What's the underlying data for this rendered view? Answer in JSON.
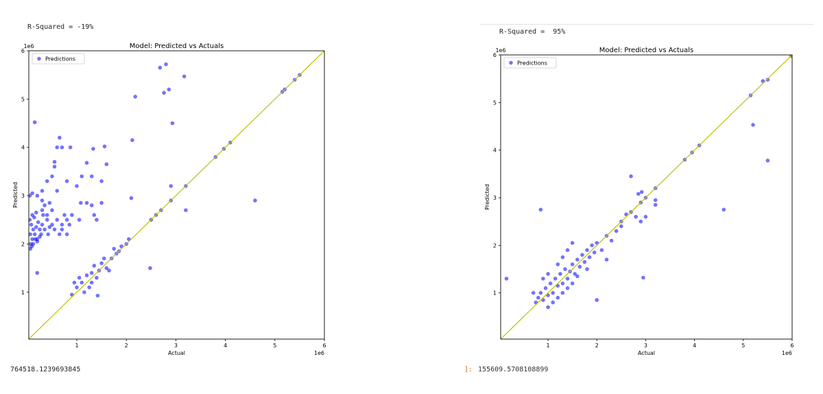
{
  "cells": [
    {
      "r_squared": "R-Squared = -19%",
      "output_value": "764518.1239693845",
      "prompt": ""
    },
    {
      "r_squared": "R-Squared =  95%",
      "output_value": "155609.5708108899",
      "prompt": "]:"
    }
  ],
  "colors": {
    "points": "#0000ff",
    "identity_line": "#bfbf00",
    "axes": "#000000"
  },
  "chart_data": [
    {
      "type": "scatter",
      "title": "Model: Predicted vs Actuals",
      "xlabel": "Actual",
      "ylabel": "Predicted",
      "x_offset_label": "1e6",
      "y_offset_label": "1e6",
      "xlim": [
        0.03,
        6.0
      ],
      "ylim": [
        0.03,
        6.0
      ],
      "xticks": [
        "1",
        "2",
        "3",
        "4",
        "5",
        "6"
      ],
      "yticks": [
        "1",
        "2",
        "3",
        "4",
        "5",
        "6"
      ],
      "legend": {
        "label": "Predictions",
        "placement": "top-left"
      },
      "grid": false,
      "reference_line": "y = x",
      "series": [
        {
          "name": "Predictions",
          "points": [
            [
              0.06,
              2.2
            ],
            [
              0.08,
              2.4
            ],
            [
              0.1,
              2.1
            ],
            [
              0.12,
              2.3
            ],
            [
              0.05,
              2.5
            ],
            [
              0.15,
              2.2
            ],
            [
              0.18,
              2.35
            ],
            [
              0.2,
              2.1
            ],
            [
              0.22,
              2.45
            ],
            [
              0.25,
              2.3
            ],
            [
              0.28,
              2.2
            ],
            [
              0.3,
              2.4
            ],
            [
              0.32,
              2.6
            ],
            [
              0.35,
              2.3
            ],
            [
              0.4,
              2.5
            ],
            [
              0.42,
              2.2
            ],
            [
              0.45,
              2.35
            ],
            [
              0.5,
              2.4
            ],
            [
              0.55,
              2.3
            ],
            [
              0.6,
              2.5
            ],
            [
              0.65,
              2.2
            ],
            [
              0.7,
              2.4
            ],
            [
              0.75,
              2.6
            ],
            [
              0.8,
              2.5
            ],
            [
              0.85,
              2.4
            ],
            [
              0.07,
              2.0
            ],
            [
              0.09,
              1.95
            ],
            [
              0.12,
              2.0
            ],
            [
              0.16,
              2.1
            ],
            [
              0.2,
              2.05
            ],
            [
              0.25,
              2.15
            ],
            [
              0.06,
              1.9
            ],
            [
              0.1,
              2.6
            ],
            [
              0.14,
              2.55
            ],
            [
              0.18,
              2.65
            ],
            [
              0.3,
              2.7
            ],
            [
              0.35,
              2.8
            ],
            [
              0.4,
              2.6
            ],
            [
              0.5,
              2.7
            ],
            [
              0.9,
              2.6
            ],
            [
              0.05,
              3.0
            ],
            [
              0.2,
              3.0
            ],
            [
              0.3,
              3.1
            ],
            [
              0.4,
              3.3
            ],
            [
              0.5,
              3.4
            ],
            [
              0.6,
              3.1
            ],
            [
              0.8,
              3.3
            ],
            [
              1.0,
              3.2
            ],
            [
              1.1,
              3.4
            ],
            [
              1.3,
              3.4
            ],
            [
              1.5,
              3.3
            ],
            [
              0.55,
              3.6
            ],
            [
              0.55,
              3.7
            ],
            [
              0.6,
              4.0
            ],
            [
              0.7,
              4.0
            ],
            [
              0.65,
              4.2
            ],
            [
              0.87,
              4.0
            ],
            [
              1.33,
              3.97
            ],
            [
              1.56,
              4.02
            ],
            [
              1.2,
              3.68
            ],
            [
              1.6,
              3.65
            ],
            [
              0.3,
              2.9
            ],
            [
              0.45,
              2.85
            ],
            [
              1.2,
              2.85
            ],
            [
              0.1,
              3.05
            ],
            [
              0.15,
              4.52
            ],
            [
              0.2,
              1.4
            ],
            [
              1.08,
              2.85
            ],
            [
              1.4,
              2.5
            ],
            [
              1.35,
              2.6
            ],
            [
              1.05,
              2.5
            ],
            [
              1.3,
              2.8
            ],
            [
              1.5,
              2.85
            ],
            [
              0.7,
              2.3
            ],
            [
              0.8,
              2.2
            ],
            [
              2.18,
              5.05
            ],
            [
              2.68,
              5.65
            ],
            [
              2.8,
              5.72
            ],
            [
              2.76,
              5.13
            ],
            [
              2.86,
              5.2
            ],
            [
              3.17,
              5.47
            ],
            [
              2.93,
              4.5
            ],
            [
              2.12,
              4.15
            ],
            [
              2.9,
              3.2
            ],
            [
              2.1,
              2.95
            ],
            [
              3.2,
              2.7
            ],
            [
              4.6,
              2.9
            ],
            [
              2.48,
              1.5
            ],
            [
              1.42,
              0.93
            ],
            [
              1.7,
              1.7
            ],
            [
              1.8,
              1.8
            ],
            [
              1.9,
              1.95
            ],
            [
              2.0,
              2.0
            ],
            [
              2.5,
              2.5
            ],
            [
              2.6,
              2.6
            ],
            [
              2.7,
              2.7
            ],
            [
              2.9,
              2.9
            ],
            [
              3.2,
              3.2
            ],
            [
              3.8,
              3.8
            ],
            [
              3.97,
              3.97
            ],
            [
              4.1,
              4.1
            ],
            [
              5.15,
              5.15
            ],
            [
              5.2,
              5.2
            ],
            [
              5.4,
              5.4
            ],
            [
              5.5,
              5.5
            ],
            [
              1.5,
              1.6
            ],
            [
              1.6,
              1.5
            ],
            [
              1.3,
              1.4
            ],
            [
              1.4,
              1.3
            ],
            [
              1.2,
              1.35
            ],
            [
              1.1,
              1.2
            ],
            [
              1.0,
              1.1
            ],
            [
              0.9,
              0.95
            ],
            [
              1.25,
              1.1
            ],
            [
              1.45,
              1.45
            ],
            [
              1.55,
              1.7
            ],
            [
              1.75,
              1.9
            ],
            [
              1.15,
              1.0
            ],
            [
              1.3,
              1.2
            ],
            [
              0.95,
              1.2
            ],
            [
              1.05,
              1.3
            ],
            [
              1.85,
              1.85
            ],
            [
              2.05,
              2.1
            ],
            [
              1.65,
              1.45
            ],
            [
              1.35,
              1.55
            ]
          ]
        }
      ]
    },
    {
      "type": "scatter",
      "title": "Model: Predicted vs Actuals",
      "xlabel": "Actual",
      "ylabel": "Predicted",
      "x_offset_label": "1e6",
      "y_offset_label": "1e6",
      "xlim": [
        0.03,
        6.0
      ],
      "ylim": [
        0.03,
        6.0
      ],
      "xticks": [
        "1",
        "2",
        "3",
        "4",
        "5",
        "6"
      ],
      "yticks": [
        "1",
        "2",
        "3",
        "4",
        "5",
        "6"
      ],
      "legend": {
        "label": "Predictions",
        "placement": "top-left"
      },
      "grid": false,
      "reference_line": "y = x",
      "series": [
        {
          "name": "Predictions",
          "points": [
            [
              0.8,
              0.9
            ],
            [
              0.85,
              1.0
            ],
            [
              0.9,
              0.85
            ],
            [
              0.95,
              1.1
            ],
            [
              1.0,
              0.95
            ],
            [
              1.05,
              1.2
            ],
            [
              1.1,
              1.0
            ],
            [
              1.15,
              1.3
            ],
            [
              1.2,
              1.15
            ],
            [
              1.25,
              1.4
            ],
            [
              1.3,
              1.2
            ],
            [
              1.35,
              1.5
            ],
            [
              1.4,
              1.3
            ],
            [
              1.45,
              1.45
            ],
            [
              1.5,
              1.6
            ],
            [
              1.55,
              1.4
            ],
            [
              1.6,
              1.7
            ],
            [
              1.65,
              1.55
            ],
            [
              1.7,
              1.8
            ],
            [
              1.75,
              1.65
            ],
            [
              1.8,
              1.9
            ],
            [
              1.85,
              1.75
            ],
            [
              1.9,
              2.0
            ],
            [
              1.95,
              1.85
            ],
            [
              2.0,
              2.05
            ],
            [
              0.7,
              1.0
            ],
            [
              0.75,
              0.8
            ],
            [
              1.0,
              0.7
            ],
            [
              1.1,
              0.8
            ],
            [
              1.2,
              0.9
            ],
            [
              1.3,
              1.0
            ],
            [
              1.4,
              1.1
            ],
            [
              1.5,
              1.2
            ],
            [
              1.6,
              1.35
            ],
            [
              1.2,
              1.6
            ],
            [
              1.3,
              1.75
            ],
            [
              1.4,
              1.9
            ],
            [
              1.5,
              2.05
            ],
            [
              0.9,
              1.3
            ],
            [
              1.0,
              1.4
            ],
            [
              2.2,
              2.2
            ],
            [
              2.4,
              2.3
            ],
            [
              2.5,
              2.5
            ],
            [
              2.6,
              2.65
            ],
            [
              2.7,
              2.7
            ],
            [
              2.8,
              2.6
            ],
            [
              2.9,
              2.9
            ],
            [
              3.0,
              3.0
            ],
            [
              3.2,
              3.2
            ],
            [
              2.1,
              1.9
            ],
            [
              2.3,
              2.1
            ],
            [
              2.5,
              2.4
            ],
            [
              2.85,
              3.08
            ],
            [
              2.92,
              3.12
            ],
            [
              2.7,
              3.45
            ],
            [
              2.9,
              2.5
            ],
            [
              3.0,
              2.6
            ],
            [
              3.2,
              2.85
            ],
            [
              3.2,
              2.95
            ],
            [
              2.0,
              0.85
            ],
            [
              2.95,
              1.32
            ],
            [
              0.15,
              1.3
            ],
            [
              0.85,
              2.75
            ],
            [
              4.6,
              2.75
            ],
            [
              5.2,
              4.53
            ],
            [
              5.5,
              3.78
            ],
            [
              3.8,
              3.8
            ],
            [
              3.95,
              3.95
            ],
            [
              4.1,
              4.1
            ],
            [
              5.15,
              5.15
            ],
            [
              5.4,
              5.45
            ],
            [
              5.5,
              5.48
            ],
            [
              5.98,
              5.98
            ],
            [
              2.2,
              1.7
            ],
            [
              1.8,
              1.5
            ]
          ]
        }
      ]
    }
  ]
}
